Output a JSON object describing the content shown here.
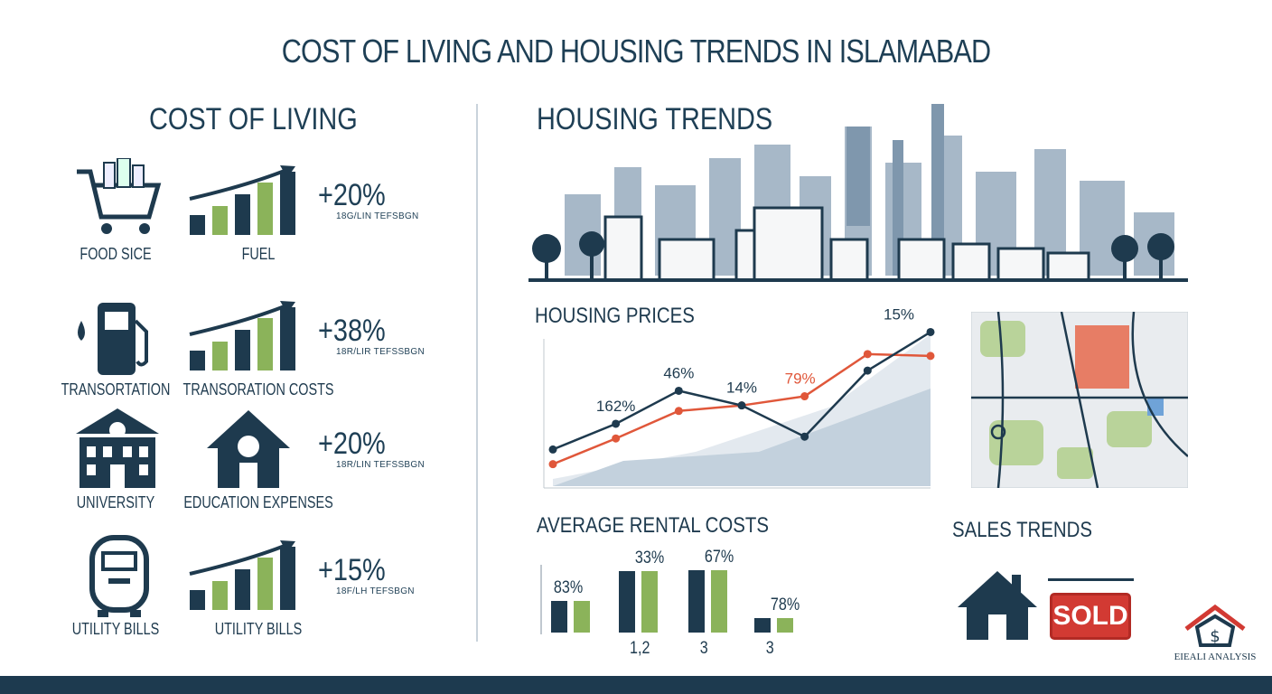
{
  "title": "COST OF LIVING AND HOUSING TRENDS IN ISLAMABAD",
  "cost_of_living": {
    "heading": "COST OF LIVING",
    "rows": [
      {
        "icon_label": "FOOD SICE",
        "chart_label": "FUEL",
        "change": "+20%",
        "note": "18G/LIN TEFSBGN",
        "icon": "shopping-cart-icon"
      },
      {
        "icon_label": "TRANSORTATION",
        "chart_label": "TRANSORATION COSTS",
        "change": "+38%",
        "note": "18R/LIR TEFSSBGN",
        "icon": "fuel-pump-icon"
      },
      {
        "icon_label": "UNIVERSITY",
        "chart_label": "EDUCATION EXPENSES",
        "change": "+20%",
        "note": "18R/LIN TEFSSBGN",
        "icon": "university-icon"
      },
      {
        "icon_label": "UTILITY BILLS",
        "chart_label": "UTILITY BILLS",
        "change": "+15%",
        "note": "18F/LH TEFSBGN",
        "icon": "meter-icon"
      }
    ]
  },
  "housing": {
    "heading": "HOUSING TRENDS",
    "sales_heading": "SALES TRENDS",
    "sold_sign": "SOLD",
    "logo_text": "EIEALI ANALYSIS"
  },
  "chart_data": [
    {
      "type": "line",
      "title": "HOUSING PRICES",
      "x": [
        1,
        2,
        3,
        4,
        5,
        6,
        7
      ],
      "series": [
        {
          "color": "#1e3a4e",
          "values": [
            20,
            34,
            52,
            44,
            27,
            63,
            84
          ],
          "labels": {
            "1": "162%",
            "2": "46%",
            "3": "14%",
            "6": "15%"
          }
        },
        {
          "color": "#e0573a",
          "values": [
            12,
            26,
            41,
            44,
            49,
            72,
            71
          ],
          "labels": {
            "4": "79%"
          }
        }
      ],
      "ylim": [
        0,
        100
      ]
    },
    {
      "type": "bar",
      "title": "AVERAGE RENTAL COSTS",
      "categories": [
        "",
        "1,2",
        "3",
        "3"
      ],
      "data_labels": [
        "83%",
        "33%",
        "67%",
        "78%"
      ],
      "series": [
        {
          "color": "#1e3a4e",
          "values": [
            48,
            95,
            96,
            22
          ]
        },
        {
          "color": "#8bb35a",
          "values": [
            48,
            95,
            96,
            22
          ]
        }
      ],
      "ylim": [
        0,
        100
      ]
    }
  ],
  "colors": {
    "navy": "#1e3a4e",
    "green": "#8bb35a",
    "orange": "#e0573a",
    "red": "#d23a33"
  }
}
